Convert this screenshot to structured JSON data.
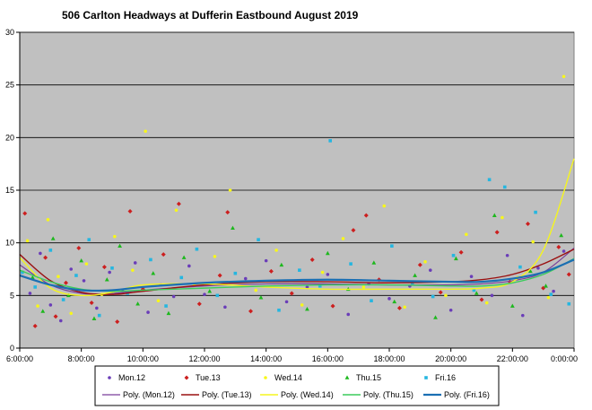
{
  "chart_data": {
    "type": "scatter",
    "title": "506 Carlton Headways  at Dufferin Eastbound August  2019",
    "xlabel": "",
    "ylabel": "",
    "xlim": [
      "6:00:00",
      "0:00:00"
    ],
    "x_ticks": [
      "6:00:00",
      "8:00:00",
      "10:00:00",
      "12:00:00",
      "14:00:00",
      "16:00:00",
      "18:00:00",
      "20:00:00",
      "22:00:00",
      "0:00:00"
    ],
    "ylim": [
      0,
      30
    ],
    "y_ticks": [
      "0",
      "5",
      "10",
      "15",
      "20",
      "25",
      "30"
    ],
    "grid": "horizontal",
    "plot_background": "#c0c0c0",
    "legend_position": "bottom",
    "series": [
      {
        "name": "Mon.12",
        "marker": "circle",
        "color": "#6a3db8",
        "points": [
          [
            "6:20",
            5.2
          ],
          [
            "6:40",
            9.0
          ],
          [
            "7:00",
            4.1
          ],
          [
            "7:20",
            2.6
          ],
          [
            "7:40",
            7.5
          ],
          [
            "8:05",
            6.4
          ],
          [
            "8:30",
            3.8
          ],
          [
            "8:55",
            7.2
          ],
          [
            "9:20",
            5.5
          ],
          [
            "9:45",
            8.1
          ],
          [
            "10:10",
            3.4
          ],
          [
            "10:35",
            6.0
          ],
          [
            "11:00",
            4.9
          ],
          [
            "11:30",
            7.8
          ],
          [
            "12:00",
            5.1
          ],
          [
            "12:40",
            3.9
          ],
          [
            "13:20",
            6.6
          ],
          [
            "14:00",
            8.3
          ],
          [
            "14:40",
            4.4
          ],
          [
            "15:20",
            5.8
          ],
          [
            "16:00",
            7.0
          ],
          [
            "16:40",
            3.2
          ],
          [
            "17:20",
            6.1
          ],
          [
            "18:00",
            4.7
          ],
          [
            "18:40",
            5.9
          ],
          [
            "19:20",
            7.4
          ],
          [
            "20:00",
            3.6
          ],
          [
            "20:40",
            6.8
          ],
          [
            "21:20",
            5.0
          ],
          [
            "21:50",
            8.8
          ],
          [
            "22:20",
            3.1
          ],
          [
            "22:50",
            7.6
          ],
          [
            "23:20",
            5.4
          ],
          [
            "23:40",
            9.2
          ]
        ]
      },
      {
        "name": "Tue.13",
        "marker": "diamond",
        "color": "#cc1f1f",
        "points": [
          [
            "6:10",
            12.8
          ],
          [
            "6:30",
            2.1
          ],
          [
            "6:50",
            8.6
          ],
          [
            "7:10",
            3.0
          ],
          [
            "7:30",
            6.2
          ],
          [
            "7:55",
            9.5
          ],
          [
            "8:20",
            4.3
          ],
          [
            "8:45",
            7.7
          ],
          [
            "9:10",
            2.5
          ],
          [
            "9:35",
            13.0
          ],
          [
            "10:00",
            5.6
          ],
          [
            "10:40",
            8.9
          ],
          [
            "11:10",
            13.7
          ],
          [
            "11:50",
            4.2
          ],
          [
            "12:30",
            6.9
          ],
          [
            "12:45",
            12.9
          ],
          [
            "13:30",
            3.5
          ],
          [
            "14:10",
            7.3
          ],
          [
            "14:50",
            5.2
          ],
          [
            "15:30",
            8.4
          ],
          [
            "16:10",
            4.0
          ],
          [
            "16:50",
            11.2
          ],
          [
            "17:15",
            12.6
          ],
          [
            "17:40",
            6.5
          ],
          [
            "18:20",
            3.8
          ],
          [
            "19:00",
            7.9
          ],
          [
            "19:40",
            5.3
          ],
          [
            "20:20",
            9.1
          ],
          [
            "21:00",
            4.6
          ],
          [
            "21:30",
            11.0
          ],
          [
            "21:55",
            6.3
          ],
          [
            "22:30",
            11.8
          ],
          [
            "23:00",
            5.7
          ],
          [
            "23:30",
            9.6
          ],
          [
            "23:50",
            7.0
          ]
        ]
      },
      {
        "name": "Wed.14",
        "marker": "circle",
        "color": "#f7f71a",
        "points": [
          [
            "6:15",
            10.2
          ],
          [
            "6:35",
            4.0
          ],
          [
            "6:55",
            12.2
          ],
          [
            "7:15",
            6.8
          ],
          [
            "7:40",
            3.3
          ],
          [
            "8:10",
            8.0
          ],
          [
            "8:40",
            5.1
          ],
          [
            "9:05",
            10.6
          ],
          [
            "9:40",
            7.4
          ],
          [
            "10:05",
            20.6
          ],
          [
            "10:30",
            4.5
          ],
          [
            "11:05",
            13.1
          ],
          [
            "11:40",
            6.0
          ],
          [
            "12:20",
            8.7
          ],
          [
            "12:50",
            15.0
          ],
          [
            "13:40",
            5.5
          ],
          [
            "14:20",
            9.3
          ],
          [
            "15:10",
            4.1
          ],
          [
            "15:50",
            7.2
          ],
          [
            "16:30",
            10.4
          ],
          [
            "17:10",
            5.8
          ],
          [
            "17:50",
            13.5
          ],
          [
            "18:30",
            3.9
          ],
          [
            "19:10",
            8.2
          ],
          [
            "19:50",
            5.0
          ],
          [
            "20:30",
            10.8
          ],
          [
            "21:10",
            4.3
          ],
          [
            "21:40",
            12.4
          ],
          [
            "22:10",
            6.7
          ],
          [
            "22:40",
            10.1
          ],
          [
            "23:10",
            4.8
          ],
          [
            "23:40",
            25.8
          ]
        ]
      },
      {
        "name": "Thu.15",
        "marker": "triangle",
        "color": "#1db81d",
        "points": [
          [
            "6:25",
            6.7
          ],
          [
            "6:45",
            3.5
          ],
          [
            "7:05",
            10.4
          ],
          [
            "7:35",
            5.0
          ],
          [
            "8:00",
            8.3
          ],
          [
            "8:25",
            2.8
          ],
          [
            "8:50",
            6.5
          ],
          [
            "9:15",
            9.7
          ],
          [
            "9:50",
            4.2
          ],
          [
            "10:20",
            7.1
          ],
          [
            "10:50",
            3.3
          ],
          [
            "11:20",
            8.6
          ],
          [
            "12:10",
            5.4
          ],
          [
            "12:55",
            11.4
          ],
          [
            "13:50",
            4.8
          ],
          [
            "14:30",
            7.9
          ],
          [
            "15:20",
            3.7
          ],
          [
            "16:00",
            9.0
          ],
          [
            "16:40",
            5.6
          ],
          [
            "17:30",
            8.1
          ],
          [
            "18:10",
            4.4
          ],
          [
            "18:50",
            6.9
          ],
          [
            "19:30",
            2.9
          ],
          [
            "20:10",
            8.5
          ],
          [
            "20:50",
            5.2
          ],
          [
            "21:25",
            12.6
          ],
          [
            "22:00",
            4.0
          ],
          [
            "22:35",
            7.3
          ],
          [
            "23:05",
            5.9
          ],
          [
            "23:35",
            10.7
          ]
        ]
      },
      {
        "name": "Fri.16",
        "marker": "square",
        "color": "#25b6e0",
        "points": [
          [
            "6:05",
            7.2
          ],
          [
            "6:30",
            5.8
          ],
          [
            "7:00",
            9.3
          ],
          [
            "7:25",
            4.6
          ],
          [
            "7:50",
            6.9
          ],
          [
            "8:15",
            10.3
          ],
          [
            "8:35",
            3.1
          ],
          [
            "9:00",
            7.6
          ],
          [
            "9:30",
            5.2
          ],
          [
            "10:15",
            8.4
          ],
          [
            "10:45",
            4.0
          ],
          [
            "11:15",
            6.7
          ],
          [
            "11:45",
            9.4
          ],
          [
            "12:25",
            5.0
          ],
          [
            "13:00",
            7.1
          ],
          [
            "13:45",
            10.3
          ],
          [
            "14:25",
            3.6
          ],
          [
            "15:05",
            7.4
          ],
          [
            "15:45",
            5.9
          ],
          [
            "16:05",
            19.7
          ],
          [
            "16:45",
            8.0
          ],
          [
            "17:25",
            4.5
          ],
          [
            "18:05",
            9.7
          ],
          [
            "18:45",
            6.2
          ],
          [
            "19:25",
            4.9
          ],
          [
            "20:05",
            8.8
          ],
          [
            "20:45",
            5.5
          ],
          [
            "21:15",
            16.0
          ],
          [
            "21:45",
            15.3
          ],
          [
            "22:15",
            7.7
          ],
          [
            "22:45",
            12.9
          ],
          [
            "23:15",
            5.1
          ],
          [
            "23:50",
            4.2
          ]
        ]
      }
    ],
    "trendlines": [
      {
        "name": "Poly. (Mon.12)",
        "color": "#7a3f9a",
        "width": 1.2,
        "x": [
          "6:00",
          "7:00",
          "8:00",
          "9:00",
          "10:00",
          "12:00",
          "14:00",
          "16:00",
          "18:00",
          "20:00",
          "21:00",
          "22:00",
          "23:00",
          "0:00"
        ],
        "y": [
          7.9,
          6.0,
          5.2,
          5.2,
          5.5,
          5.9,
          6.1,
          6.1,
          6.0,
          6.0,
          6.1,
          6.4,
          7.2,
          9.5
        ]
      },
      {
        "name": "Poly. (Tue.13)",
        "color": "#9a1010",
        "width": 1.4,
        "x": [
          "6:00",
          "7:00",
          "8:00",
          "9:00",
          "10:00",
          "12:00",
          "14:00",
          "16:00",
          "18:00",
          "20:00",
          "21:00",
          "22:00",
          "23:00",
          "0:00"
        ],
        "y": [
          8.9,
          6.4,
          5.3,
          5.1,
          5.4,
          6.0,
          6.3,
          6.3,
          6.2,
          6.3,
          6.5,
          7.0,
          8.0,
          9.4
        ]
      },
      {
        "name": "Poly. (Wed.14)",
        "color": "#f5f51e",
        "width": 1.4,
        "x": [
          "6:00",
          "7:00",
          "8:00",
          "9:00",
          "10:00",
          "12:00",
          "14:00",
          "16:00",
          "18:00",
          "20:00",
          "21:00",
          "22:00",
          "23:00",
          "0:00"
        ],
        "y": [
          8.6,
          5.7,
          5.0,
          5.3,
          6.0,
          6.1,
          5.8,
          5.6,
          5.6,
          5.6,
          5.7,
          6.3,
          9.3,
          18.0
        ]
      },
      {
        "name": "Poly. (Thu.15)",
        "color": "#3ccc5c",
        "width": 1.4,
        "x": [
          "6:00",
          "7:00",
          "8:00",
          "9:00",
          "10:00",
          "12:00",
          "14:00",
          "16:00",
          "18:00",
          "20:00",
          "21:00",
          "22:00",
          "23:00",
          "0:00"
        ],
        "y": [
          7.4,
          6.3,
          5.6,
          5.4,
          5.5,
          5.7,
          5.9,
          6.0,
          6.0,
          5.9,
          5.9,
          6.2,
          7.0,
          8.5
        ]
      },
      {
        "name": "Poly. (Fri.16)",
        "color": "#1b6fb3",
        "width": 2.2,
        "x": [
          "6:00",
          "7:00",
          "8:00",
          "9:00",
          "10:00",
          "12:00",
          "14:00",
          "16:00",
          "18:00",
          "20:00",
          "21:00",
          "22:00",
          "23:00",
          "0:00"
        ],
        "y": [
          6.9,
          6.0,
          5.5,
          5.5,
          5.8,
          6.2,
          6.4,
          6.5,
          6.4,
          6.3,
          6.3,
          6.6,
          7.2,
          8.4
        ]
      }
    ]
  }
}
